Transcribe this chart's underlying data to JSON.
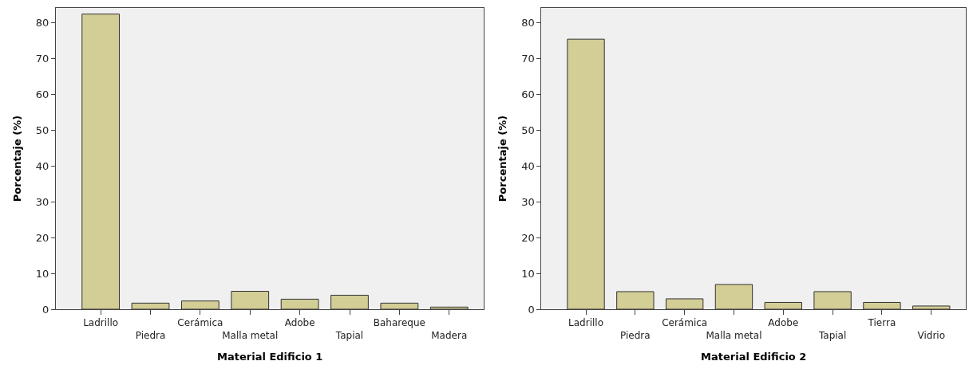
{
  "chart_data": [
    {
      "type": "bar",
      "xlabel": "Material Edificio 1",
      "ylabel": "Porcentaje (%)",
      "categories": [
        "Ladrillo",
        "Piedra",
        "Cerámica",
        "Malla metal",
        "Adobe",
        "Tapial",
        "Bahareque",
        "Madera"
      ],
      "values": [
        82.3,
        1.7,
        2.3,
        5.0,
        2.8,
        3.9,
        1.7,
        0.6
      ],
      "color": "#d3cd96",
      "ylim": [
        0,
        84
      ],
      "yticks": [
        0,
        10,
        20,
        30,
        40,
        50,
        60,
        70,
        80
      ],
      "grid": false
    },
    {
      "type": "bar",
      "xlabel": "Material Edificio 2",
      "ylabel": "Porcentaje (%)",
      "categories": [
        "Ladrillo",
        "Piedra",
        "Cerámica",
        "Malla metal",
        "Adobe",
        "Tapial",
        "Tierra",
        "Vidrio"
      ],
      "values": [
        75.3,
        4.9,
        2.9,
        6.9,
        1.9,
        4.9,
        1.9,
        0.9
      ],
      "color": "#d3cd96",
      "ylim": [
        0,
        84
      ],
      "yticks": [
        0,
        10,
        20,
        30,
        40,
        50,
        60,
        70,
        80
      ],
      "grid": false
    }
  ]
}
